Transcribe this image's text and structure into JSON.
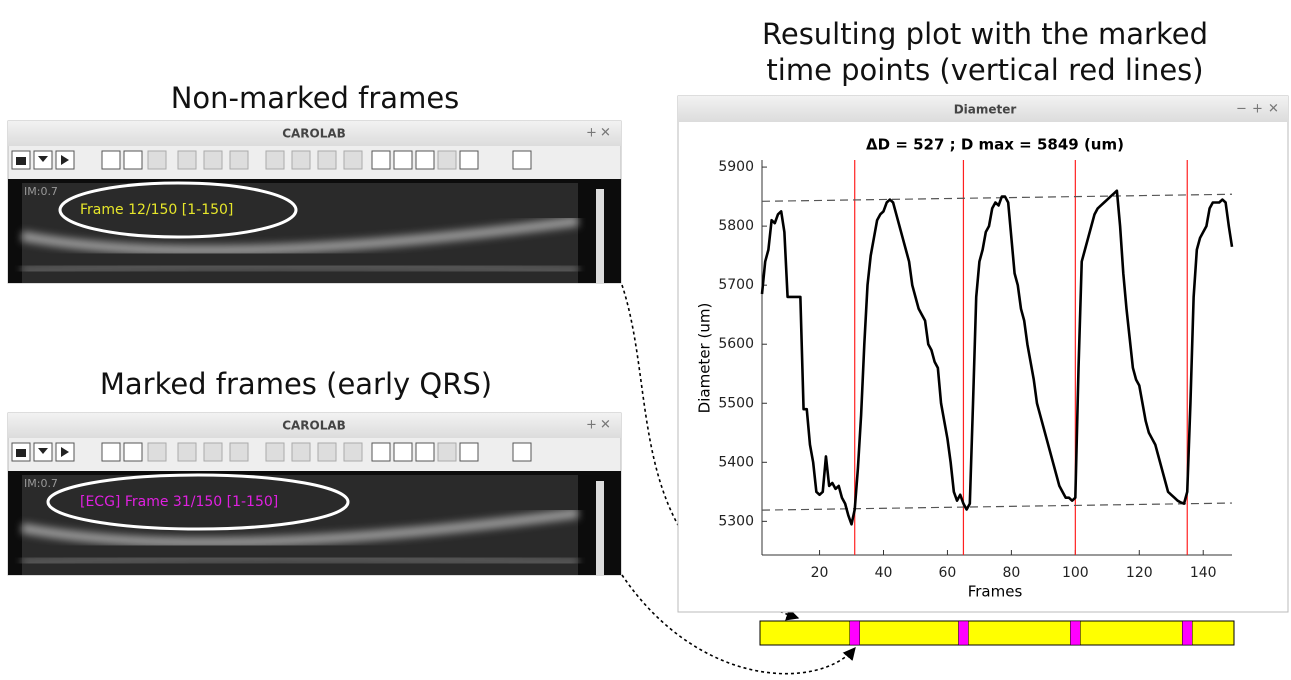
{
  "captions": {
    "right": [
      "Resulting plot with the marked",
      "time points (vertical red lines)"
    ],
    "top_left": "Non-marked frames",
    "bottom_left": "Marked frames (early QRS)"
  },
  "windows": [
    {
      "title": "CAROLAB",
      "corner": "IM:0.7",
      "overlay": "Frame 12/150 [1-150]",
      "overlay_color": "#e6e62a"
    },
    {
      "title": "CAROLAB",
      "corner": "IM:0.7",
      "overlay": "[ECG] Frame 31/150 [1-150]",
      "overlay_color": "#e020e0"
    }
  ],
  "chart_data": {
    "type": "line",
    "window_title": "Diameter",
    "title": "ΔD = 527 ; D max = 5849 (um)",
    "x_label": "Frames",
    "y_label": "Diameter (um)",
    "xlim": [
      2,
      149
    ],
    "ylim": [
      5243,
      5912
    ],
    "xticks": [
      20,
      40,
      60,
      80,
      100,
      120,
      140
    ],
    "yticks": [
      5300,
      5400,
      5500,
      5600,
      5700,
      5800,
      5900
    ],
    "series": [
      {
        "color": "#000000",
        "x": [
          2,
          3,
          4,
          5,
          6,
          7,
          8,
          9,
          10,
          11,
          12,
          13,
          14,
          15,
          16,
          17,
          18,
          19,
          20,
          21,
          22,
          23,
          24,
          25,
          26,
          27,
          28,
          29,
          30,
          31,
          32,
          33,
          34,
          35,
          36,
          37,
          38,
          39,
          40,
          41,
          42,
          43,
          44,
          45,
          46,
          47,
          48,
          49,
          50,
          51,
          52,
          53,
          54,
          55,
          56,
          57,
          58,
          59,
          60,
          61,
          62,
          63,
          64,
          65,
          66,
          67,
          68,
          69,
          70,
          71,
          72,
          73,
          74,
          75,
          76,
          77,
          78,
          79,
          80,
          81,
          82,
          83,
          84,
          85,
          86,
          87,
          88,
          89,
          90,
          91,
          92,
          93,
          94,
          95,
          96,
          97,
          98,
          99,
          100,
          101,
          102,
          103,
          104,
          105,
          106,
          107,
          108,
          109,
          110,
          111,
          112,
          113,
          114,
          115,
          116,
          117,
          118,
          119,
          120,
          121,
          122,
          123,
          124,
          125,
          126,
          127,
          128,
          129,
          130,
          131,
          132,
          133,
          134,
          135,
          136,
          137,
          138,
          139,
          140,
          141,
          142,
          143,
          144,
          145,
          146,
          147,
          148,
          149
        ],
        "values": [
          5685,
          5740,
          5760,
          5810,
          5805,
          5820,
          5825,
          5790,
          5680,
          5680,
          5680,
          5680,
          5680,
          5490,
          5490,
          5430,
          5400,
          5350,
          5345,
          5350,
          5410,
          5360,
          5365,
          5355,
          5360,
          5340,
          5330,
          5310,
          5295,
          5320,
          5390,
          5480,
          5600,
          5700,
          5750,
          5780,
          5810,
          5820,
          5825,
          5840,
          5845,
          5840,
          5820,
          5800,
          5780,
          5760,
          5740,
          5700,
          5680,
          5660,
          5650,
          5640,
          5600,
          5590,
          5570,
          5560,
          5500,
          5470,
          5440,
          5400,
          5350,
          5335,
          5345,
          5330,
          5320,
          5330,
          5500,
          5680,
          5740,
          5760,
          5790,
          5800,
          5830,
          5840,
          5835,
          5850,
          5850,
          5840,
          5780,
          5720,
          5700,
          5660,
          5640,
          5600,
          5570,
          5540,
          5500,
          5480,
          5460,
          5440,
          5420,
          5400,
          5380,
          5360,
          5350,
          5340,
          5340,
          5335,
          5340,
          5560,
          5740,
          5760,
          5780,
          5800,
          5820,
          5830,
          5835,
          5840,
          5845,
          5850,
          5855,
          5860,
          5800,
          5720,
          5660,
          5610,
          5560,
          5540,
          5530,
          5500,
          5470,
          5450,
          5440,
          5430,
          5410,
          5390,
          5370,
          5350,
          5345,
          5340,
          5335,
          5332,
          5330,
          5350,
          5500,
          5680,
          5760,
          5780,
          5790,
          5800,
          5830,
          5840,
          5840,
          5840,
          5845,
          5840,
          5800,
          5765
        ]
      }
    ],
    "reference_lines": [
      {
        "color": "#555555",
        "x": [
          2,
          149
        ],
        "values": [
          5842,
          5854
        ]
      },
      {
        "color": "#555555",
        "x": [
          2,
          149
        ],
        "values": [
          5319,
          5331
        ]
      }
    ],
    "markers": [
      31,
      65,
      100,
      135
    ],
    "marker_color": "#ff2020",
    "timeline_color": "#ffff00",
    "timeline_mark_color": "#ff00ff"
  }
}
